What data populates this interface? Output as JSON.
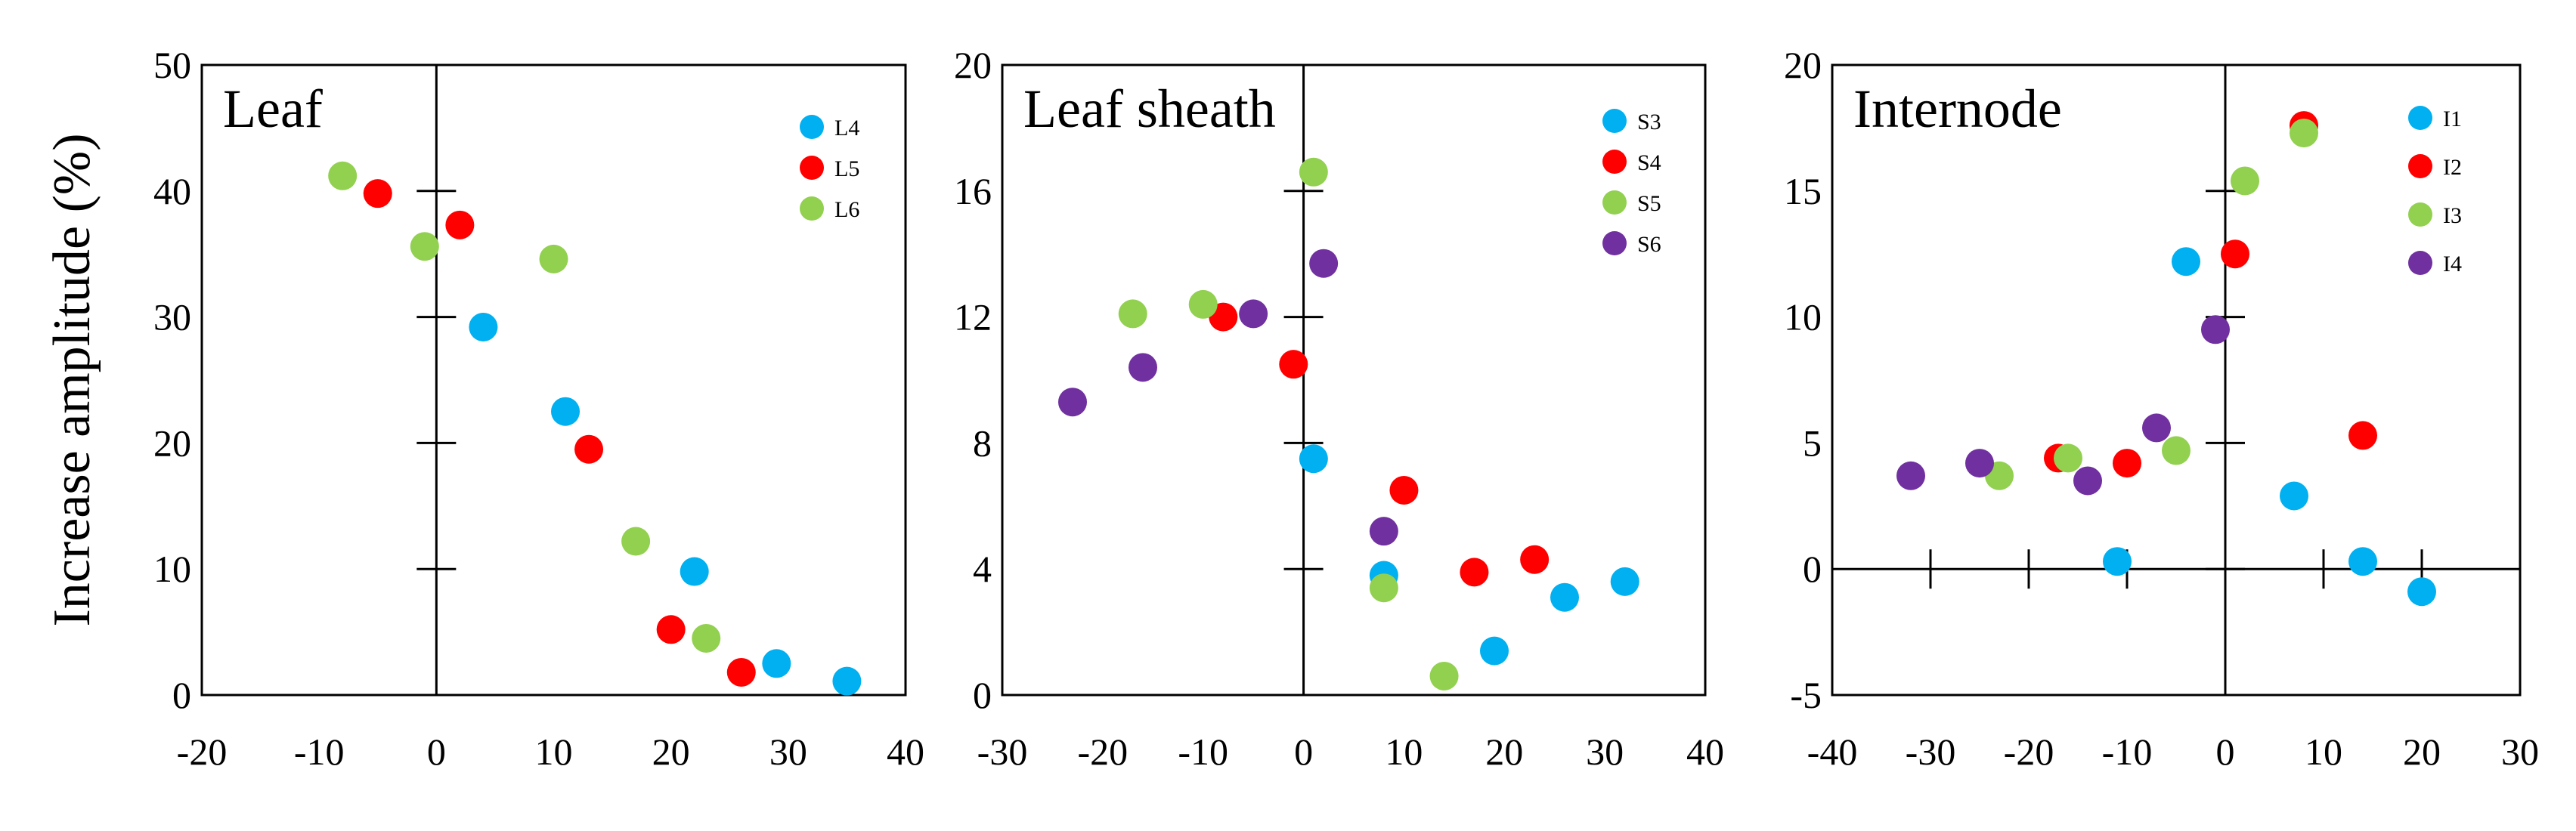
{
  "figure": {
    "ylabel": "Increase amplitude (%)"
  },
  "chart_data": [
    {
      "type": "scatter",
      "title": "Leaf",
      "xlim": [
        -20,
        40
      ],
      "ylim": [
        0,
        50
      ],
      "xticks": [
        -20,
        -10,
        0,
        10,
        20,
        30,
        40
      ],
      "yticks": [
        0,
        10,
        20,
        30,
        40,
        50
      ],
      "xlabel": "",
      "ylabel": "Increase amplitude (%)",
      "series": [
        {
          "name": "L4",
          "color": "#00B0F0",
          "points": [
            [
              4,
              29.2
            ],
            [
              11,
              22.5
            ],
            [
              22,
              9.8
            ],
            [
              29,
              2.5
            ],
            [
              35,
              1.1
            ]
          ]
        },
        {
          "name": "L5",
          "color": "#FF0000",
          "points": [
            [
              -5,
              39.8
            ],
            [
              2,
              37.3
            ],
            [
              13,
              19.5
            ],
            [
              20,
              5.2
            ],
            [
              26,
              1.8
            ]
          ]
        },
        {
          "name": "L6",
          "color": "#92D050",
          "points": [
            [
              -8,
              41.2
            ],
            [
              -1,
              35.6
            ],
            [
              10,
              34.6
            ],
            [
              17,
              12.2
            ],
            [
              23,
              4.5
            ]
          ]
        }
      ]
    },
    {
      "type": "scatter",
      "title": "Leaf sheath",
      "xlim": [
        -30,
        40
      ],
      "ylim": [
        0,
        20
      ],
      "xticks": [
        -30,
        -20,
        -10,
        0,
        10,
        20,
        30,
        40
      ],
      "yticks": [
        0,
        4,
        8,
        12,
        16,
        20
      ],
      "xlabel": "",
      "ylabel": "",
      "series": [
        {
          "name": "S3",
          "color": "#00B0F0",
          "points": [
            [
              1,
              7.5
            ],
            [
              8,
              3.8
            ],
            [
              19,
              1.4
            ],
            [
              26,
              3.1
            ],
            [
              32,
              3.6
            ]
          ]
        },
        {
          "name": "S4",
          "color": "#FF0000",
          "points": [
            [
              -8,
              12.0
            ],
            [
              -1,
              10.5
            ],
            [
              10,
              6.5
            ],
            [
              17,
              3.9
            ],
            [
              23,
              4.3
            ]
          ]
        },
        {
          "name": "S5",
          "color": "#92D050",
          "points": [
            [
              -17,
              12.1
            ],
            [
              -10,
              12.4
            ],
            [
              1,
              16.6
            ],
            [
              8,
              3.4
            ],
            [
              14,
              0.6
            ]
          ]
        },
        {
          "name": "S6",
          "color": "#7030A0",
          "points": [
            [
              -23,
              9.3
            ],
            [
              -16,
              10.4
            ],
            [
              -5,
              12.1
            ],
            [
              2,
              13.7
            ],
            [
              8,
              5.2
            ]
          ]
        }
      ]
    },
    {
      "type": "scatter",
      "title": "Internode",
      "xlim": [
        -40,
        30
      ],
      "ylim": [
        -5,
        20
      ],
      "xticks": [
        -40,
        -30,
        -20,
        -10,
        0,
        10,
        20,
        30
      ],
      "yticks": [
        -5,
        0,
        5,
        10,
        15,
        20
      ],
      "xlabel": "",
      "ylabel": "",
      "series": [
        {
          "name": "I1",
          "color": "#00B0F0",
          "points": [
            [
              -11,
              0.3
            ],
            [
              -4,
              12.2
            ],
            [
              7,
              2.9
            ],
            [
              14,
              0.3
            ],
            [
              20,
              -0.9
            ]
          ]
        },
        {
          "name": "I2",
          "color": "#FF0000",
          "points": [
            [
              -17,
              4.4
            ],
            [
              -10,
              4.2
            ],
            [
              1,
              12.5
            ],
            [
              8,
              17.6
            ],
            [
              14,
              5.3
            ]
          ]
        },
        {
          "name": "I3",
          "color": "#92D050",
          "points": [
            [
              -23,
              3.7
            ],
            [
              -16,
              4.4
            ],
            [
              -5,
              4.7
            ],
            [
              2,
              15.4
            ],
            [
              8,
              17.3
            ]
          ]
        },
        {
          "name": "I4",
          "color": "#7030A0",
          "points": [
            [
              -32,
              3.7
            ],
            [
              -25,
              4.2
            ],
            [
              -14,
              3.5
            ],
            [
              -7,
              5.6
            ],
            [
              -1,
              9.5
            ]
          ]
        }
      ]
    }
  ]
}
